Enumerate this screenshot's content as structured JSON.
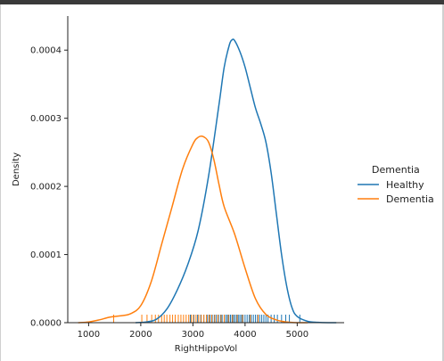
{
  "chart_data": {
    "type": "line",
    "subtype": "kde-with-rug",
    "xlabel": "RightHippoVol",
    "ylabel": "Density",
    "xlim": [
      600,
      5900
    ],
    "ylim": [
      0,
      0.00045
    ],
    "xticks": [
      1000,
      2000,
      3000,
      4000,
      5000
    ],
    "yticks": [
      0.0,
      0.0001,
      0.0002,
      0.0003,
      0.0004
    ],
    "ytick_labels": [
      "0.0000",
      "0.0001",
      "0.0002",
      "0.0003",
      "0.0004"
    ],
    "grid": false,
    "legend": {
      "title": "Dementia",
      "placement": "right"
    },
    "series": [
      {
        "name": "Healthy",
        "color": "#1f77b4",
        "x": [
          1900,
          2100,
          2300,
          2500,
          2700,
          2900,
          3100,
          3300,
          3500,
          3600,
          3700,
          3750,
          3800,
          3900,
          4000,
          4100,
          4200,
          4300,
          4400,
          4500,
          4600,
          4700,
          4800,
          4900,
          5000,
          5200,
          5400,
          5600,
          5750
        ],
        "y": [
          0.0,
          1e-06,
          5e-06,
          2e-05,
          4.8e-05,
          8.5e-05,
          0.000135,
          0.000215,
          0.00032,
          0.000375,
          0.000408,
          0.000415,
          0.000414,
          0.000398,
          0.000375,
          0.000345,
          0.000315,
          0.000292,
          0.000265,
          0.00022,
          0.00016,
          0.0001,
          5.3e-05,
          2.2e-05,
          9e-06,
          2e-06,
          5e-07,
          0.0,
          0.0
        ]
      },
      {
        "name": "Dementia",
        "color": "#ff7f0e",
        "x": [
          800,
          1000,
          1200,
          1400,
          1600,
          1800,
          2000,
          2200,
          2400,
          2600,
          2800,
          3000,
          3100,
          3200,
          3300,
          3400,
          3500,
          3600,
          3800,
          4000,
          4200,
          4400,
          4600,
          4800,
          5000,
          5200
        ],
        "y": [
          0.0,
          1e-06,
          4e-06,
          8e-06,
          1e-05,
          1.3e-05,
          2.5e-05,
          6e-05,
          0.000115,
          0.00017,
          0.000225,
          0.000262,
          0.000272,
          0.000273,
          0.000265,
          0.00024,
          0.000203,
          0.00017,
          0.00013,
          8e-05,
          3.5e-05,
          1.2e-05,
          4e-06,
          1e-06,
          0.0,
          0.0
        ]
      }
    ],
    "rug": {
      "Healthy": [
        2950,
        3020,
        3090,
        3150,
        3210,
        3280,
        3330,
        3370,
        3410,
        3450,
        3490,
        3530,
        3560,
        3600,
        3630,
        3660,
        3690,
        3720,
        3750,
        3780,
        3810,
        3840,
        3870,
        3900,
        3930,
        3960,
        4000,
        4040,
        4080,
        4120,
        4160,
        4200,
        4240,
        4280,
        4320,
        4360,
        4400,
        4440,
        4500,
        4560,
        4620,
        4700,
        4780,
        4850,
        5050
      ],
      "Dementia": [
        1480,
        2020,
        2120,
        2210,
        2280,
        2340,
        2400,
        2450,
        2500,
        2560,
        2610,
        2660,
        2720,
        2770,
        2820,
        2870,
        2920,
        2970,
        3010,
        3060,
        3110,
        3160,
        3210,
        3260,
        3310,
        3360,
        3420,
        3480,
        3540,
        3600,
        3680,
        3760,
        3850,
        3950,
        4100,
        4250
      ]
    }
  }
}
